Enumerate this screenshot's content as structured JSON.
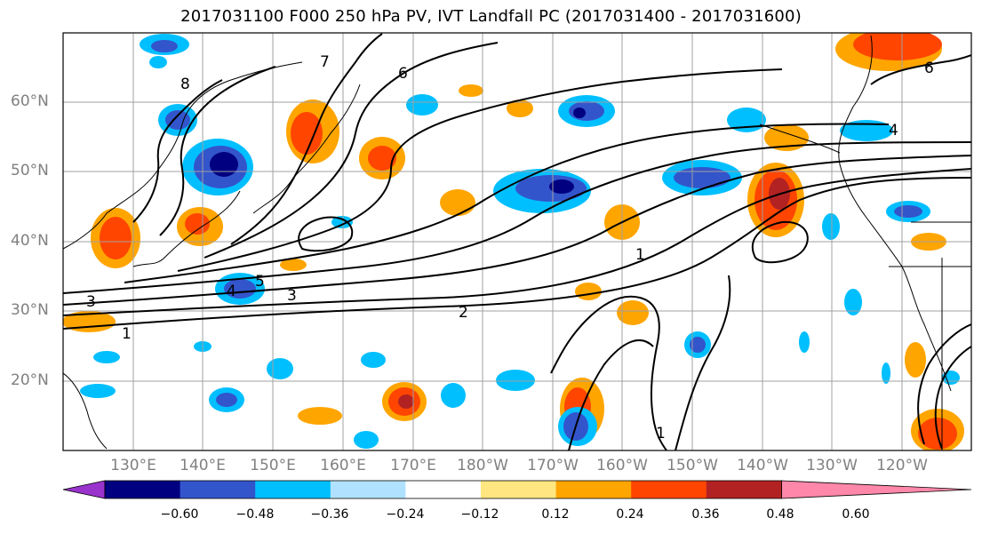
{
  "title": "2017031100 F000 250 hPa PV, IVT Landfall PC (2017031400 - 2017031600)",
  "lat_labels": [
    "60°N",
    "50°N",
    "40°N",
    "30°N",
    "20°N"
  ],
  "lon_labels": [
    "130°E",
    "140°E",
    "150°E",
    "160°E",
    "170°E",
    "180°W",
    "170°W",
    "160°W",
    "150°W",
    "140°W",
    "130°W",
    "120°W"
  ],
  "colorbar": {
    "ticks": [
      "−0.60",
      "−0.48",
      "−0.36",
      "−0.24",
      "−0.12",
      "0.12",
      "0.24",
      "0.36",
      "0.48",
      "0.60"
    ],
    "colors": [
      "#9933cc",
      "#000080",
      "#3355cc",
      "#00bfff",
      "#b0e2ff",
      "#ffffff",
      "#ffe680",
      "#ffa500",
      "#ff4500",
      "#b22222",
      "#ff88aa"
    ]
  },
  "contour_labels": [
    "8",
    "7",
    "6",
    "5",
    "4",
    "3",
    "2",
    "1"
  ],
  "colors": {
    "contour": "#000000",
    "grid": "#a0a0a0",
    "coast": "#000000"
  }
}
